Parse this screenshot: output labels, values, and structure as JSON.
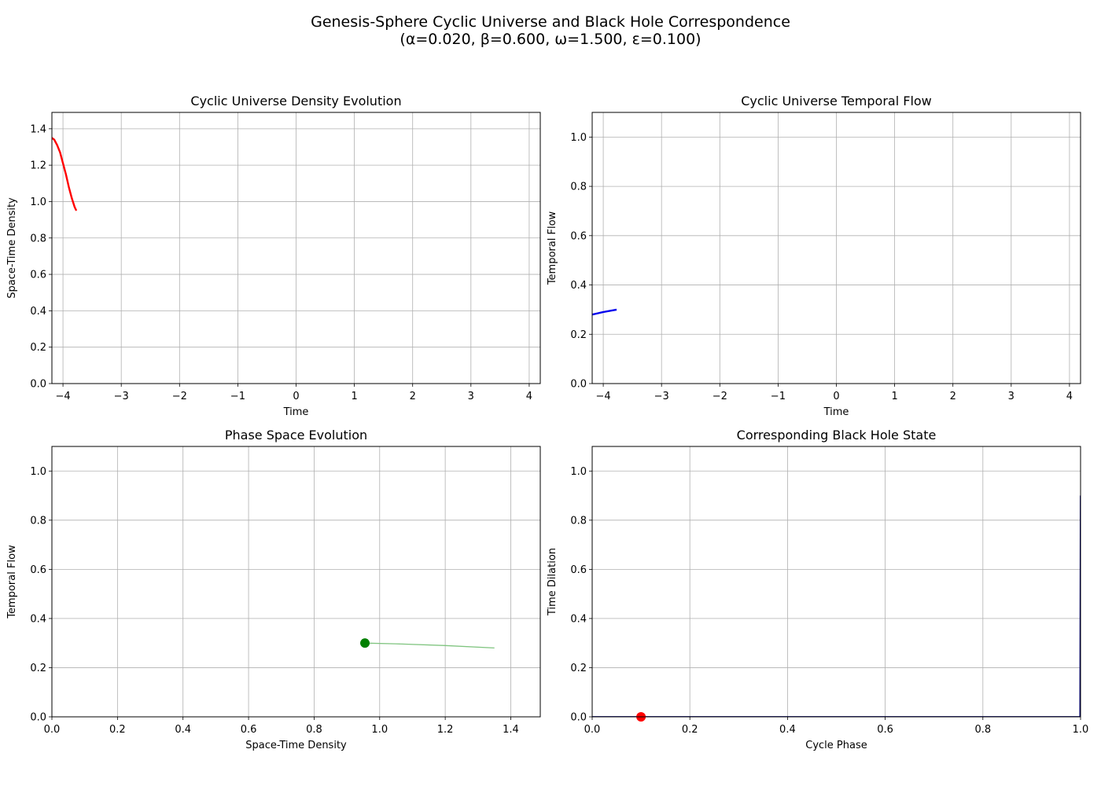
{
  "figure": {
    "suptitle_line1": "Genesis-Sphere Cyclic Universe and Black Hole Correspondence",
    "suptitle_line2": "(α=0.020, β=0.600, ω=1.500, ε=0.100)"
  },
  "chart_data": [
    {
      "id": "density",
      "type": "line",
      "title": "Cyclic Universe Density Evolution",
      "xlabel": "Time",
      "ylabel": "Space-Time Density",
      "xlim": [
        -4.19,
        4.19
      ],
      "ylim": [
        0,
        1.49
      ],
      "xticks": [
        -4,
        -3,
        -2,
        -1,
        0,
        1,
        2,
        3,
        4
      ],
      "yticks": [
        0.0,
        0.2,
        0.4,
        0.6,
        0.8,
        1.0,
        1.2,
        1.4
      ],
      "grid": true,
      "series": [
        {
          "color": "#ff0000",
          "width": 2.4,
          "x": [
            -4.19,
            -4.15,
            -4.1,
            -4.05,
            -4.0,
            -3.95,
            -3.9,
            -3.85,
            -3.8,
            -3.77
          ],
          "y": [
            1.35,
            1.34,
            1.31,
            1.27,
            1.21,
            1.15,
            1.08,
            1.02,
            0.97,
            0.95
          ]
        }
      ]
    },
    {
      "id": "flow",
      "type": "line",
      "title": "Cyclic Universe Temporal Flow",
      "xlabel": "Time",
      "ylabel": "Temporal Flow",
      "xlim": [
        -4.19,
        4.19
      ],
      "ylim": [
        0,
        1.1
      ],
      "xticks": [
        -4,
        -3,
        -2,
        -1,
        0,
        1,
        2,
        3,
        4
      ],
      "yticks": [
        0.0,
        0.2,
        0.4,
        0.6,
        0.8,
        1.0
      ],
      "grid": true,
      "series": [
        {
          "color": "#0000ee",
          "width": 2.4,
          "x": [
            -4.19,
            -4.0,
            -3.77
          ],
          "y": [
            0.28,
            0.29,
            0.3
          ]
        }
      ]
    },
    {
      "id": "phase",
      "type": "line",
      "title": "Phase Space Evolution",
      "xlabel": "Space-Time Density",
      "ylabel": "Temporal Flow",
      "xlim": [
        0,
        1.49
      ],
      "ylim": [
        0,
        1.1
      ],
      "xticks": [
        0.0,
        0.2,
        0.4,
        0.6,
        0.8,
        1.0,
        1.2,
        1.4
      ],
      "yticks": [
        0.0,
        0.2,
        0.4,
        0.6,
        0.8,
        1.0
      ],
      "grid": true,
      "series": [
        {
          "color": "#7fc47f",
          "width": 1.3,
          "x": [
            1.35,
            1.2,
            1.05,
            0.955
          ],
          "y": [
            0.28,
            0.29,
            0.297,
            0.3
          ]
        }
      ],
      "markers": [
        {
          "x": 0.955,
          "y": 0.3,
          "color": "#008000",
          "r": 6
        }
      ]
    },
    {
      "id": "blackhole",
      "type": "line",
      "title": "Corresponding Black Hole State",
      "xlabel": "Cycle Phase",
      "ylabel": "Time Dilation",
      "xlim": [
        0,
        1.0
      ],
      "ylim": [
        0,
        1.1
      ],
      "xticks": [
        0.0,
        0.2,
        0.4,
        0.6,
        0.8,
        1.0
      ],
      "yticks": [
        0.0,
        0.2,
        0.4,
        0.6,
        0.8,
        1.0
      ],
      "grid": true,
      "series": [
        {
          "color": "#000080",
          "width": 1.8,
          "x": [
            0.0,
            0.999,
            1.0
          ],
          "y": [
            0.0,
            0.0,
            0.9
          ]
        }
      ],
      "markers": [
        {
          "x": 0.1,
          "y": 0.0,
          "color": "#ff0000",
          "r": 6
        }
      ]
    }
  ]
}
